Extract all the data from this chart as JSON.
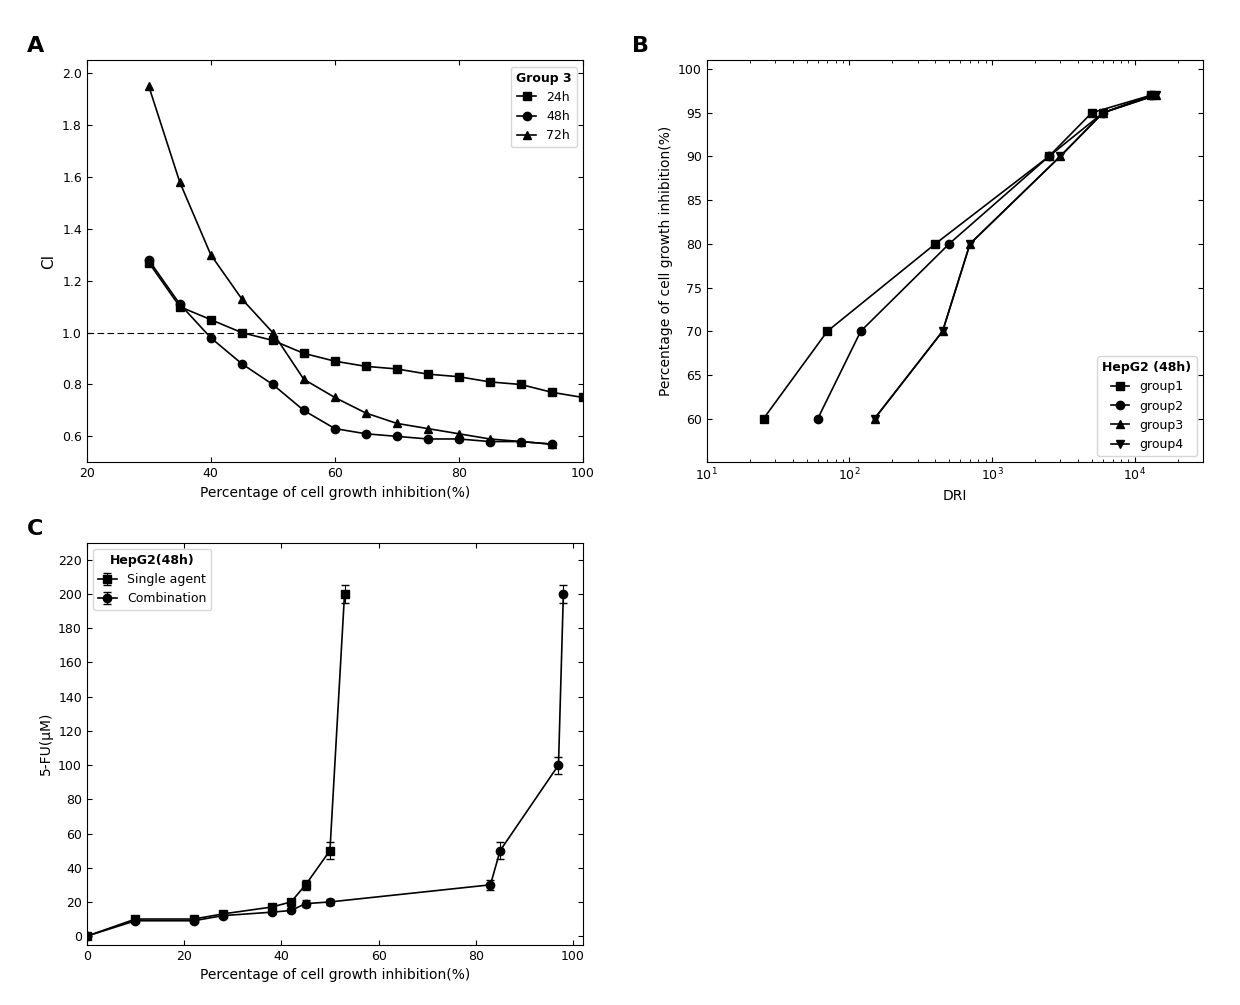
{
  "panel_A": {
    "label": "A",
    "legend_title": "Group 3",
    "s24h_x": [
      30,
      35,
      40,
      45,
      50,
      55,
      60,
      65,
      70,
      75,
      80,
      85,
      90,
      95,
      100
    ],
    "s24h_y": [
      1.27,
      1.1,
      1.05,
      1.0,
      0.97,
      0.92,
      0.89,
      0.87,
      0.86,
      0.84,
      0.83,
      0.81,
      0.8,
      0.77,
      0.75
    ],
    "s48h_x": [
      30,
      35,
      40,
      45,
      50,
      55,
      60,
      65,
      70,
      75,
      80,
      85,
      90,
      95
    ],
    "s48h_y": [
      1.28,
      1.11,
      0.98,
      0.88,
      0.8,
      0.7,
      0.63,
      0.61,
      0.6,
      0.59,
      0.59,
      0.58,
      0.58,
      0.57
    ],
    "s72h_x": [
      30,
      35,
      40,
      45,
      50,
      55,
      60,
      65,
      70,
      75,
      80,
      85,
      90,
      95
    ],
    "s72h_y": [
      1.95,
      1.58,
      1.3,
      1.13,
      1.0,
      0.82,
      0.75,
      0.69,
      0.65,
      0.63,
      0.61,
      0.59,
      0.58,
      0.57
    ],
    "xlabel": "Percentage of cell growth inhibition(%)",
    "ylabel": "CI",
    "xlim": [
      20,
      100
    ],
    "ylim": [
      0.5,
      2.05
    ],
    "xticks": [
      20,
      40,
      60,
      80,
      100
    ],
    "yticks": [
      0.6,
      0.8,
      1.0,
      1.2,
      1.4,
      1.6,
      1.8,
      2.0
    ],
    "hline_y": 1.0
  },
  "panel_B": {
    "label": "B",
    "legend_title": "HepG2 (48h)",
    "g1_x": [
      25,
      70,
      400,
      2500,
      5000,
      13000
    ],
    "g1_y": [
      60,
      70,
      80,
      90,
      95,
      97
    ],
    "g2_x": [
      60,
      120,
      500,
      2500,
      6000,
      13000
    ],
    "g2_y": [
      60,
      70,
      80,
      90,
      95,
      97
    ],
    "g3_x": [
      150,
      450,
      700,
      3000,
      6000,
      14000
    ],
    "g3_y": [
      60,
      70,
      80,
      90,
      95,
      97
    ],
    "g4_x": [
      150,
      450,
      700,
      3000,
      6000,
      14000
    ],
    "g4_y": [
      60,
      70,
      80,
      90,
      95,
      97
    ],
    "xlabel": "DRI",
    "ylabel": "Percentage of cell growth inhibition(%)",
    "ylim": [
      55,
      101
    ],
    "yticks": [
      60,
      65,
      70,
      75,
      80,
      85,
      90,
      95,
      100
    ]
  },
  "panel_C": {
    "label": "C",
    "legend_title": "HepG2(48h)",
    "sa_x": [
      0,
      10,
      22,
      28,
      38,
      42,
      45,
      50,
      53
    ],
    "sa_y": [
      0,
      10,
      10,
      13,
      17,
      20,
      30,
      50,
      200
    ],
    "sa_ye": [
      0,
      1,
      1,
      1,
      1,
      2,
      3,
      5,
      5
    ],
    "cb_x": [
      0,
      10,
      22,
      28,
      38,
      42,
      45,
      50,
      83,
      85,
      97,
      98
    ],
    "cb_y": [
      0,
      9,
      9,
      12,
      14,
      15,
      19,
      20,
      30,
      50,
      100,
      200
    ],
    "cb_ye": [
      0,
      1,
      1,
      1,
      1,
      1,
      2,
      2,
      3,
      5,
      5,
      5
    ],
    "xlabel": "Percentage of cell growth inhibition(%)",
    "ylabel": "5-FU(μM)",
    "xlim": [
      0,
      102
    ],
    "ylim": [
      -5,
      230
    ],
    "xticks": [
      0,
      20,
      40,
      60,
      80,
      100
    ],
    "yticks": [
      0,
      20,
      40,
      60,
      80,
      100,
      120,
      140,
      160,
      180,
      200,
      220
    ]
  },
  "color": "#000000",
  "markersize": 6,
  "linewidth": 1.2
}
